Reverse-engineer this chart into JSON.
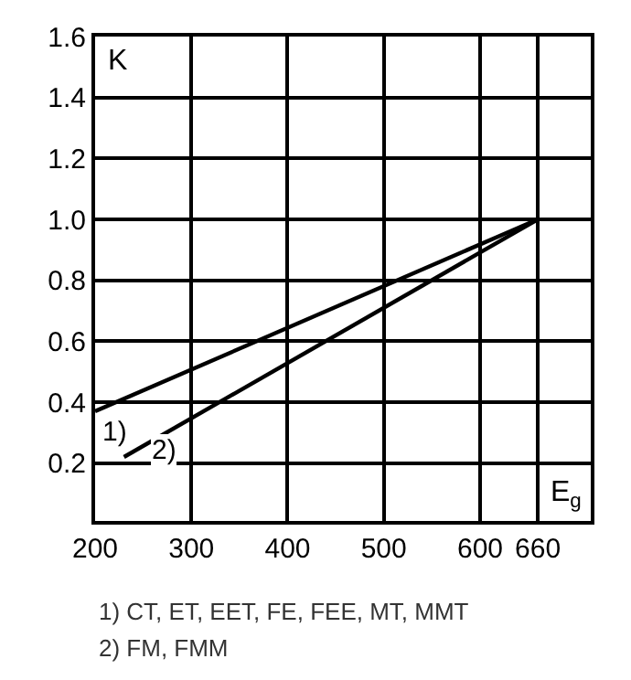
{
  "chart_data": {
    "type": "line",
    "xlabel": "E$_{g}$",
    "ylabel": "K",
    "xlim": [
      200,
      715
    ],
    "ylim": [
      0.01,
      1.6
    ],
    "xticks": [
      200,
      300,
      400,
      500,
      600,
      660
    ],
    "yticks": [
      0.2,
      0.4,
      0.6,
      0.8,
      {
        "value": 1,
        "label": "1.0"
      },
      1.2,
      1.4,
      1.6
    ],
    "grid": true,
    "legend": false,
    "marker": "none",
    "line_style": "solid",
    "series": [
      {
        "name": "1)",
        "color": "#000000",
        "x": [
          200,
          660
        ],
        "values": [
          0.37,
          1.0
        ]
      },
      {
        "name": "2)",
        "color": "#000000",
        "x": [
          230,
          660
        ],
        "values": [
          0.22,
          1.0
        ]
      }
    ],
    "annotations": [
      "1) CT, ET, EET, FE, FEE, MT, MMT",
      "2) FM, FMM"
    ]
  }
}
